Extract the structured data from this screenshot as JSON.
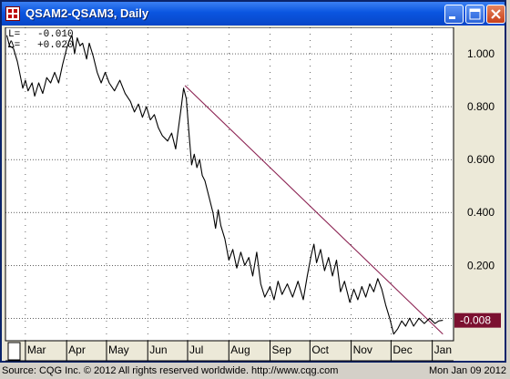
{
  "window": {
    "title": "QSAM2-QSAM3, Daily",
    "icons": {
      "app": "chart-app-icon",
      "minimize": "minimize-icon",
      "maximize": "maximize-icon",
      "close": "close-icon"
    }
  },
  "readout": {
    "l_label": "L=",
    "l_value": "-0.010",
    "delta_label": "Δ=",
    "delta_value": "+0.020"
  },
  "footer": {
    "source": "Source: CQG Inc. © 2012 All rights reserved worldwide. http://www.cqg.com",
    "date": "Mon Jan 09 2012"
  },
  "chart_data": {
    "type": "line",
    "title": "QSAM2-QSAM3, Daily",
    "xlabel": "",
    "ylabel": "",
    "x_ticks": [
      "Mar",
      "Apr",
      "May",
      "Jun",
      "Jul",
      "Aug",
      "Sep",
      "Oct",
      "Nov",
      "Dec",
      "Jan"
    ],
    "y_ticks": [
      0.2,
      0.4,
      0.6,
      0.8,
      1.0
    ],
    "y_tick_labels": [
      "0.200",
      "0.400",
      "0.600",
      "0.800",
      "1.000"
    ],
    "ylim": [
      -0.085,
      1.1
    ],
    "grid": true,
    "last_value_label": "-0.008",
    "colors": {
      "plot_background": "#ffffff",
      "series": "#000000",
      "trendline": "#8b2252",
      "last_value_badge": "#7b1030",
      "grid": "#000000"
    },
    "series": [
      {
        "points": [
          [
            "2011-02-15",
            1.07
          ],
          [
            "2011-02-17",
            1.03
          ],
          [
            "2011-02-20",
            1.02
          ],
          [
            "2011-02-23",
            0.97
          ],
          [
            "2011-02-25",
            0.92
          ],
          [
            "2011-02-27",
            0.87
          ],
          [
            "2011-03-01",
            0.9
          ],
          [
            "2011-03-03",
            0.86
          ],
          [
            "2011-03-06",
            0.89
          ],
          [
            "2011-03-08",
            0.84
          ],
          [
            "2011-03-11",
            0.89
          ],
          [
            "2011-03-14",
            0.85
          ],
          [
            "2011-03-17",
            0.91
          ],
          [
            "2011-03-20",
            0.89
          ],
          [
            "2011-03-23",
            0.93
          ],
          [
            "2011-03-26",
            0.89
          ],
          [
            "2011-03-29",
            0.96
          ],
          [
            "2011-04-01",
            1.02
          ],
          [
            "2011-04-03",
            1.05
          ],
          [
            "2011-04-05",
            1.07
          ],
          [
            "2011-04-07",
            1.0
          ],
          [
            "2011-04-09",
            1.06
          ],
          [
            "2011-04-11",
            1.03
          ],
          [
            "2011-04-13",
            1.04
          ],
          [
            "2011-04-16",
            0.98
          ],
          [
            "2011-04-18",
            1.04
          ],
          [
            "2011-04-21",
            0.99
          ],
          [
            "2011-04-24",
            0.93
          ],
          [
            "2011-04-27",
            0.89
          ],
          [
            "2011-04-30",
            0.93
          ],
          [
            "2011-05-03",
            0.89
          ],
          [
            "2011-05-07",
            0.86
          ],
          [
            "2011-05-11",
            0.9
          ],
          [
            "2011-05-15",
            0.85
          ],
          [
            "2011-05-19",
            0.82
          ],
          [
            "2011-05-22",
            0.78
          ],
          [
            "2011-05-25",
            0.81
          ],
          [
            "2011-05-28",
            0.76
          ],
          [
            "2011-05-31",
            0.8
          ],
          [
            "2011-06-03",
            0.75
          ],
          [
            "2011-06-06",
            0.77
          ],
          [
            "2011-06-09",
            0.72
          ],
          [
            "2011-06-12",
            0.69
          ],
          [
            "2011-06-16",
            0.67
          ],
          [
            "2011-06-19",
            0.7
          ],
          [
            "2011-06-22",
            0.64
          ],
          [
            "2011-06-26",
            0.79
          ],
          [
            "2011-06-28",
            0.87
          ],
          [
            "2011-06-30",
            0.83
          ],
          [
            "2011-07-02",
            0.7
          ],
          [
            "2011-07-04",
            0.58
          ],
          [
            "2011-07-06",
            0.62
          ],
          [
            "2011-07-08",
            0.57
          ],
          [
            "2011-07-10",
            0.6
          ],
          [
            "2011-07-12",
            0.54
          ],
          [
            "2011-07-14",
            0.52
          ],
          [
            "2011-07-17",
            0.46
          ],
          [
            "2011-07-20",
            0.4
          ],
          [
            "2011-07-22",
            0.34
          ],
          [
            "2011-07-24",
            0.41
          ],
          [
            "2011-07-26",
            0.35
          ],
          [
            "2011-07-29",
            0.3
          ],
          [
            "2011-08-01",
            0.22
          ],
          [
            "2011-08-04",
            0.26
          ],
          [
            "2011-08-07",
            0.19
          ],
          [
            "2011-08-10",
            0.25
          ],
          [
            "2011-08-13",
            0.2
          ],
          [
            "2011-08-16",
            0.23
          ],
          [
            "2011-08-19",
            0.16
          ],
          [
            "2011-08-22",
            0.25
          ],
          [
            "2011-08-25",
            0.13
          ],
          [
            "2011-08-28",
            0.08
          ],
          [
            "2011-09-01",
            0.12
          ],
          [
            "2011-09-04",
            0.07
          ],
          [
            "2011-09-07",
            0.14
          ],
          [
            "2011-09-10",
            0.09
          ],
          [
            "2011-09-14",
            0.13
          ],
          [
            "2011-09-18",
            0.08
          ],
          [
            "2011-09-22",
            0.14
          ],
          [
            "2011-09-26",
            0.07
          ],
          [
            "2011-09-29",
            0.16
          ],
          [
            "2011-10-02",
            0.24
          ],
          [
            "2011-10-04",
            0.28
          ],
          [
            "2011-10-06",
            0.21
          ],
          [
            "2011-10-09",
            0.26
          ],
          [
            "2011-10-12",
            0.18
          ],
          [
            "2011-10-15",
            0.23
          ],
          [
            "2011-10-18",
            0.16
          ],
          [
            "2011-10-21",
            0.22
          ],
          [
            "2011-10-24",
            0.1
          ],
          [
            "2011-10-27",
            0.14
          ],
          [
            "2011-10-31",
            0.06
          ],
          [
            "2011-11-03",
            0.11
          ],
          [
            "2011-11-06",
            0.07
          ],
          [
            "2011-11-09",
            0.12
          ],
          [
            "2011-11-12",
            0.08
          ],
          [
            "2011-11-15",
            0.13
          ],
          [
            "2011-11-18",
            0.1
          ],
          [
            "2011-11-21",
            0.15
          ],
          [
            "2011-11-24",
            0.11
          ],
          [
            "2011-11-27",
            0.05
          ],
          [
            "2011-11-30",
            0.0
          ],
          [
            "2011-12-03",
            -0.06
          ],
          [
            "2011-12-06",
            -0.04
          ],
          [
            "2011-12-09",
            -0.01
          ],
          [
            "2011-12-12",
            -0.03
          ],
          [
            "2011-12-15",
            0.0
          ],
          [
            "2011-12-18",
            -0.03
          ],
          [
            "2011-12-22",
            0.0
          ],
          [
            "2011-12-26",
            -0.02
          ],
          [
            "2011-12-30",
            0.0
          ],
          [
            "2012-01-03",
            -0.02
          ],
          [
            "2012-01-06",
            -0.01
          ],
          [
            "2012-01-09",
            -0.008
          ]
        ]
      }
    ],
    "trendline": [
      [
        "2011-06-29",
        0.88
      ],
      [
        "2012-01-09",
        -0.06
      ]
    ]
  }
}
